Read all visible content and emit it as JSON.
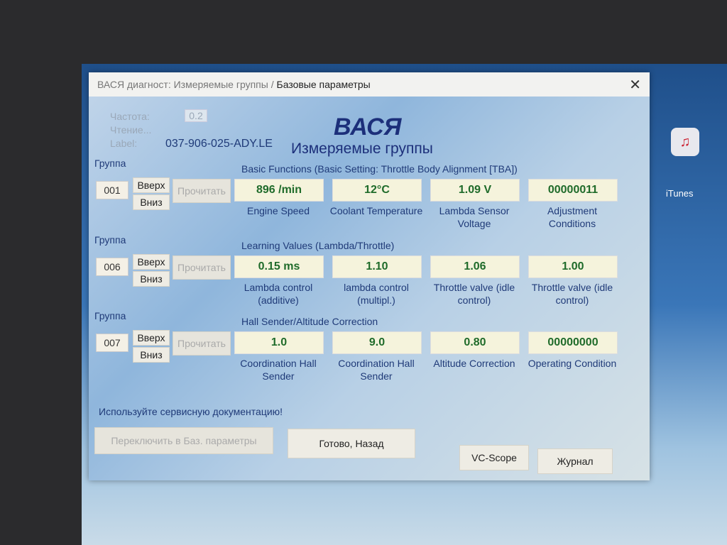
{
  "window": {
    "title_dim": "ВАСЯ диагност: Измеряемые группы / ",
    "title_main": "Базовые параметры",
    "close": "✕"
  },
  "top": {
    "freq_label": "Частота:",
    "freq_value": "0.2",
    "reading_label": "Чтение...",
    "label_label": "Label:",
    "label_value": "037-906-025-ADY.LE",
    "brand": "ВАСЯ",
    "subtitle": "Измеряемые группы"
  },
  "groups": [
    {
      "group_label": "Группа",
      "number": "001",
      "up": "Вверх",
      "down": "Вниз",
      "read": "Прочитать",
      "header": "Basic Functions (Basic Setting: Throttle Body Alignment [TBA])",
      "fields": [
        {
          "value": "896 /min",
          "caption": "Engine Speed"
        },
        {
          "value": "12°C",
          "caption": "Coolant Temperature"
        },
        {
          "value": "1.09 V",
          "caption": "Lambda Sensor Voltage"
        },
        {
          "value": "00000011",
          "caption": "Adjustment Conditions"
        }
      ]
    },
    {
      "group_label": "Группа",
      "number": "006",
      "up": "Вверх",
      "down": "Вниз",
      "read": "Прочитать",
      "header": "Learning Values (Lambda/Throttle)",
      "fields": [
        {
          "value": "0.15 ms",
          "caption": "Lambda control (additive)"
        },
        {
          "value": "1.10",
          "caption": "lambda control (multipl.)"
        },
        {
          "value": "1.06",
          "caption": "Throttle valve (idle control)"
        },
        {
          "value": "1.00",
          "caption": "Throttle valve (idle control)"
        }
      ]
    },
    {
      "group_label": "Группа",
      "number": "007",
      "up": "Вверх",
      "down": "Вниз",
      "read": "Прочитать",
      "header": "Hall Sender/Altitude Correction",
      "fields": [
        {
          "value": "1.0",
          "caption": "Coordination Hall Sender"
        },
        {
          "value": "9.0",
          "caption": "Coordination Hall Sender"
        },
        {
          "value": "0.80",
          "caption": "Altitude Correction"
        },
        {
          "value": "00000000",
          "caption": "Operating Condition"
        }
      ]
    }
  ],
  "footer": {
    "notice": "Используйте сервисную документацию!",
    "switch_basic": "Переключить в Баз. параметры",
    "done_back": "Готово, Назад",
    "vc_scope": "VC-Scope",
    "log": "Журнал"
  },
  "desktop": {
    "itunes": "iTunes"
  },
  "colors": {
    "value_text": "#1f6b2a",
    "label_text": "#1f3a78",
    "brand": "#1c2f7a"
  }
}
